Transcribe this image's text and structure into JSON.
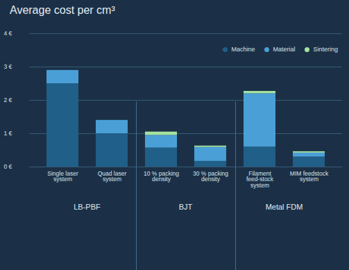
{
  "chart_data": {
    "type": "bar",
    "stacked": true,
    "title": "Average cost per cm³",
    "categories": [
      "Single laser system",
      "Quad laser system",
      "10 % packing density",
      "30 % packing density",
      "Filament feed-stock system",
      "MIM feedstock system"
    ],
    "series": [
      {
        "name": "Machine",
        "color": "#1f5f88",
        "values": [
          2.5,
          1.0,
          0.57,
          0.17,
          0.6,
          0.3
        ]
      },
      {
        "name": "Material",
        "color": "#4a9fd6",
        "values": [
          0.4,
          0.4,
          0.38,
          0.42,
          1.6,
          0.12
        ]
      },
      {
        "name": "Sintering",
        "color": "#a6e3a1",
        "values": [
          0,
          0,
          0.1,
          0.04,
          0.07,
          0.04
        ]
      }
    ],
    "groups": [
      {
        "label": "LB-PBF",
        "members": [
          "Single laser system",
          "Quad laser system"
        ]
      },
      {
        "label": "BJT",
        "members": [
          "10 % packing density",
          "30 % packing density"
        ]
      },
      {
        "label": "Metal FDM",
        "members": [
          "Filament feed-stock system",
          "MIM feedstock system"
        ]
      }
    ],
    "ylim": [
      0,
      4
    ],
    "yticks": [
      {
        "value": 0,
        "label": "0 €"
      },
      {
        "value": 1,
        "label": "1 €"
      },
      {
        "value": 2,
        "label": "2 €"
      },
      {
        "value": 3,
        "label": "3 €"
      },
      {
        "value": 4,
        "label": "4 €"
      }
    ],
    "grid": true,
    "legend": "top-right"
  }
}
